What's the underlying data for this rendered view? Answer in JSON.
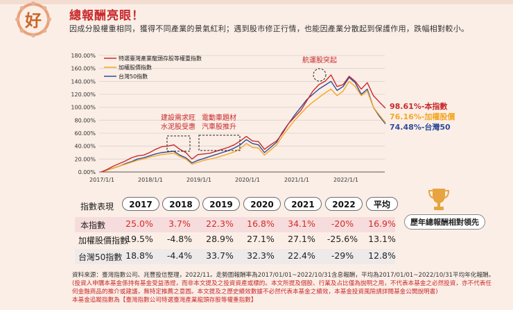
{
  "header": {
    "badge": "好",
    "title": "總報酬亮眼！",
    "subtitle": "因成分股權重相同，獲得不同產業的景氣紅利；遇到股市修正行情，也能因產業分散起到保護作用，跌幅相對較小。"
  },
  "chart_data": {
    "type": "line",
    "x_ticks": [
      "2017/1/1",
      "2018/1/1",
      "2019/1/1",
      "2020/1/1",
      "2021/1/1",
      "2022/1/1"
    ],
    "y_ticks": [
      "0.00%",
      "20.00%",
      "40.00%",
      "60.00%",
      "80.00%",
      "100.00%",
      "120.00%",
      "140.00%",
      "160.00%",
      "180.00%"
    ],
    "ylim": [
      0,
      180
    ],
    "x_range": [
      "2017/1/1",
      "2022/10/31"
    ],
    "series": [
      {
        "name": "特選臺灣產業龍頭存股等權重指數",
        "color": "#c8292c",
        "values": [
          0,
          4,
          9,
          13,
          17,
          22,
          25,
          26,
          30,
          35,
          39,
          40,
          42,
          35,
          30,
          20,
          27,
          28,
          29,
          32,
          35,
          38,
          42,
          48,
          55,
          48,
          47,
          35,
          42,
          48,
          60,
          75,
          85,
          95,
          110,
          125,
          135,
          140,
          150,
          132,
          135,
          148,
          140,
          128,
          138,
          118,
          108,
          98.6
        ]
      },
      {
        "name": "加權股價指數",
        "color": "#f5a623",
        "values": [
          0,
          3,
          6,
          9,
          12,
          15,
          18,
          20,
          23,
          25,
          27,
          28,
          29,
          24,
          20,
          12,
          15,
          18,
          20,
          22,
          25,
          28,
          31,
          36,
          44,
          38,
          37,
          26,
          34,
          42,
          56,
          68,
          80,
          90,
          100,
          108,
          115,
          122,
          128,
          118,
          125,
          140,
          132,
          118,
          125,
          100,
          88,
          76.2
        ]
      },
      {
        "name": "台灣50指數",
        "color": "#2f4b9a",
        "values": [
          0,
          3,
          6,
          9,
          13,
          16,
          20,
          22,
          25,
          28,
          30,
          31,
          32,
          26,
          22,
          14,
          18,
          21,
          24,
          27,
          30,
          33,
          37,
          42,
          50,
          44,
          42,
          30,
          38,
          46,
          62,
          75,
          88,
          100,
          112,
          120,
          128,
          134,
          140,
          126,
          132,
          146,
          138,
          120,
          128,
          100,
          86,
          74.5
        ]
      }
    ],
    "annotations": [
      "建設需求旺\n水泥股受惠",
      "電動車題材\n汽車股推升",
      "航運股突起"
    ],
    "end_labels": [
      "98.61%-本指數",
      "76.16%-加權股價",
      "74.48%-台灣50"
    ]
  },
  "table": {
    "header_label": "指數表現",
    "columns": [
      "2017",
      "2018",
      "2019",
      "2020",
      "2021",
      "2022",
      "平均"
    ],
    "rows": [
      {
        "name": "本指數",
        "values": [
          "25.0%",
          "3.7%",
          "22.3%",
          "16.8%",
          "34.1%",
          "-20%",
          "16.9%"
        ]
      },
      {
        "name": "加權股價指數",
        "values": [
          "19.5%",
          "-4.8%",
          "28.9%",
          "27.1%",
          "27.1%",
          "-25.6%",
          "13.1%"
        ]
      },
      {
        "name": "台灣50指數",
        "values": [
          "18.8%",
          "-4.4%",
          "33.7%",
          "32.3%",
          "22.4%",
          "-29%",
          "12.8%"
        ]
      }
    ]
  },
  "sidebar": {
    "lead_label": "歷年總報酬相對領先"
  },
  "footer": {
    "line1": "資料來源：臺灣指數公司、兆豐投信整理，2022/11。走勢圖報酬率為2017/01/01~2022/10/31含息報酬，平均為2017/01/01~2022/10/31平均年化報酬。",
    "line2": "(投資人申購本基金係持有基金受益憑證，而非本文提及之投資資產或標的。本文所提及個股、行業及占比僅為說明之用，不代表本基金之必然投資，亦不代表任",
    "line3": "何金融商品的推介或建議，無特定推薦之意圖。本文提及之歷史績效數據不必然代表本基金之績效，本基金投資風險請詳閱基金公開說明書)",
    "line4": "本基金追蹤指數為【臺灣指數公司特選臺灣產業龍頭存股等權重指數】"
  }
}
